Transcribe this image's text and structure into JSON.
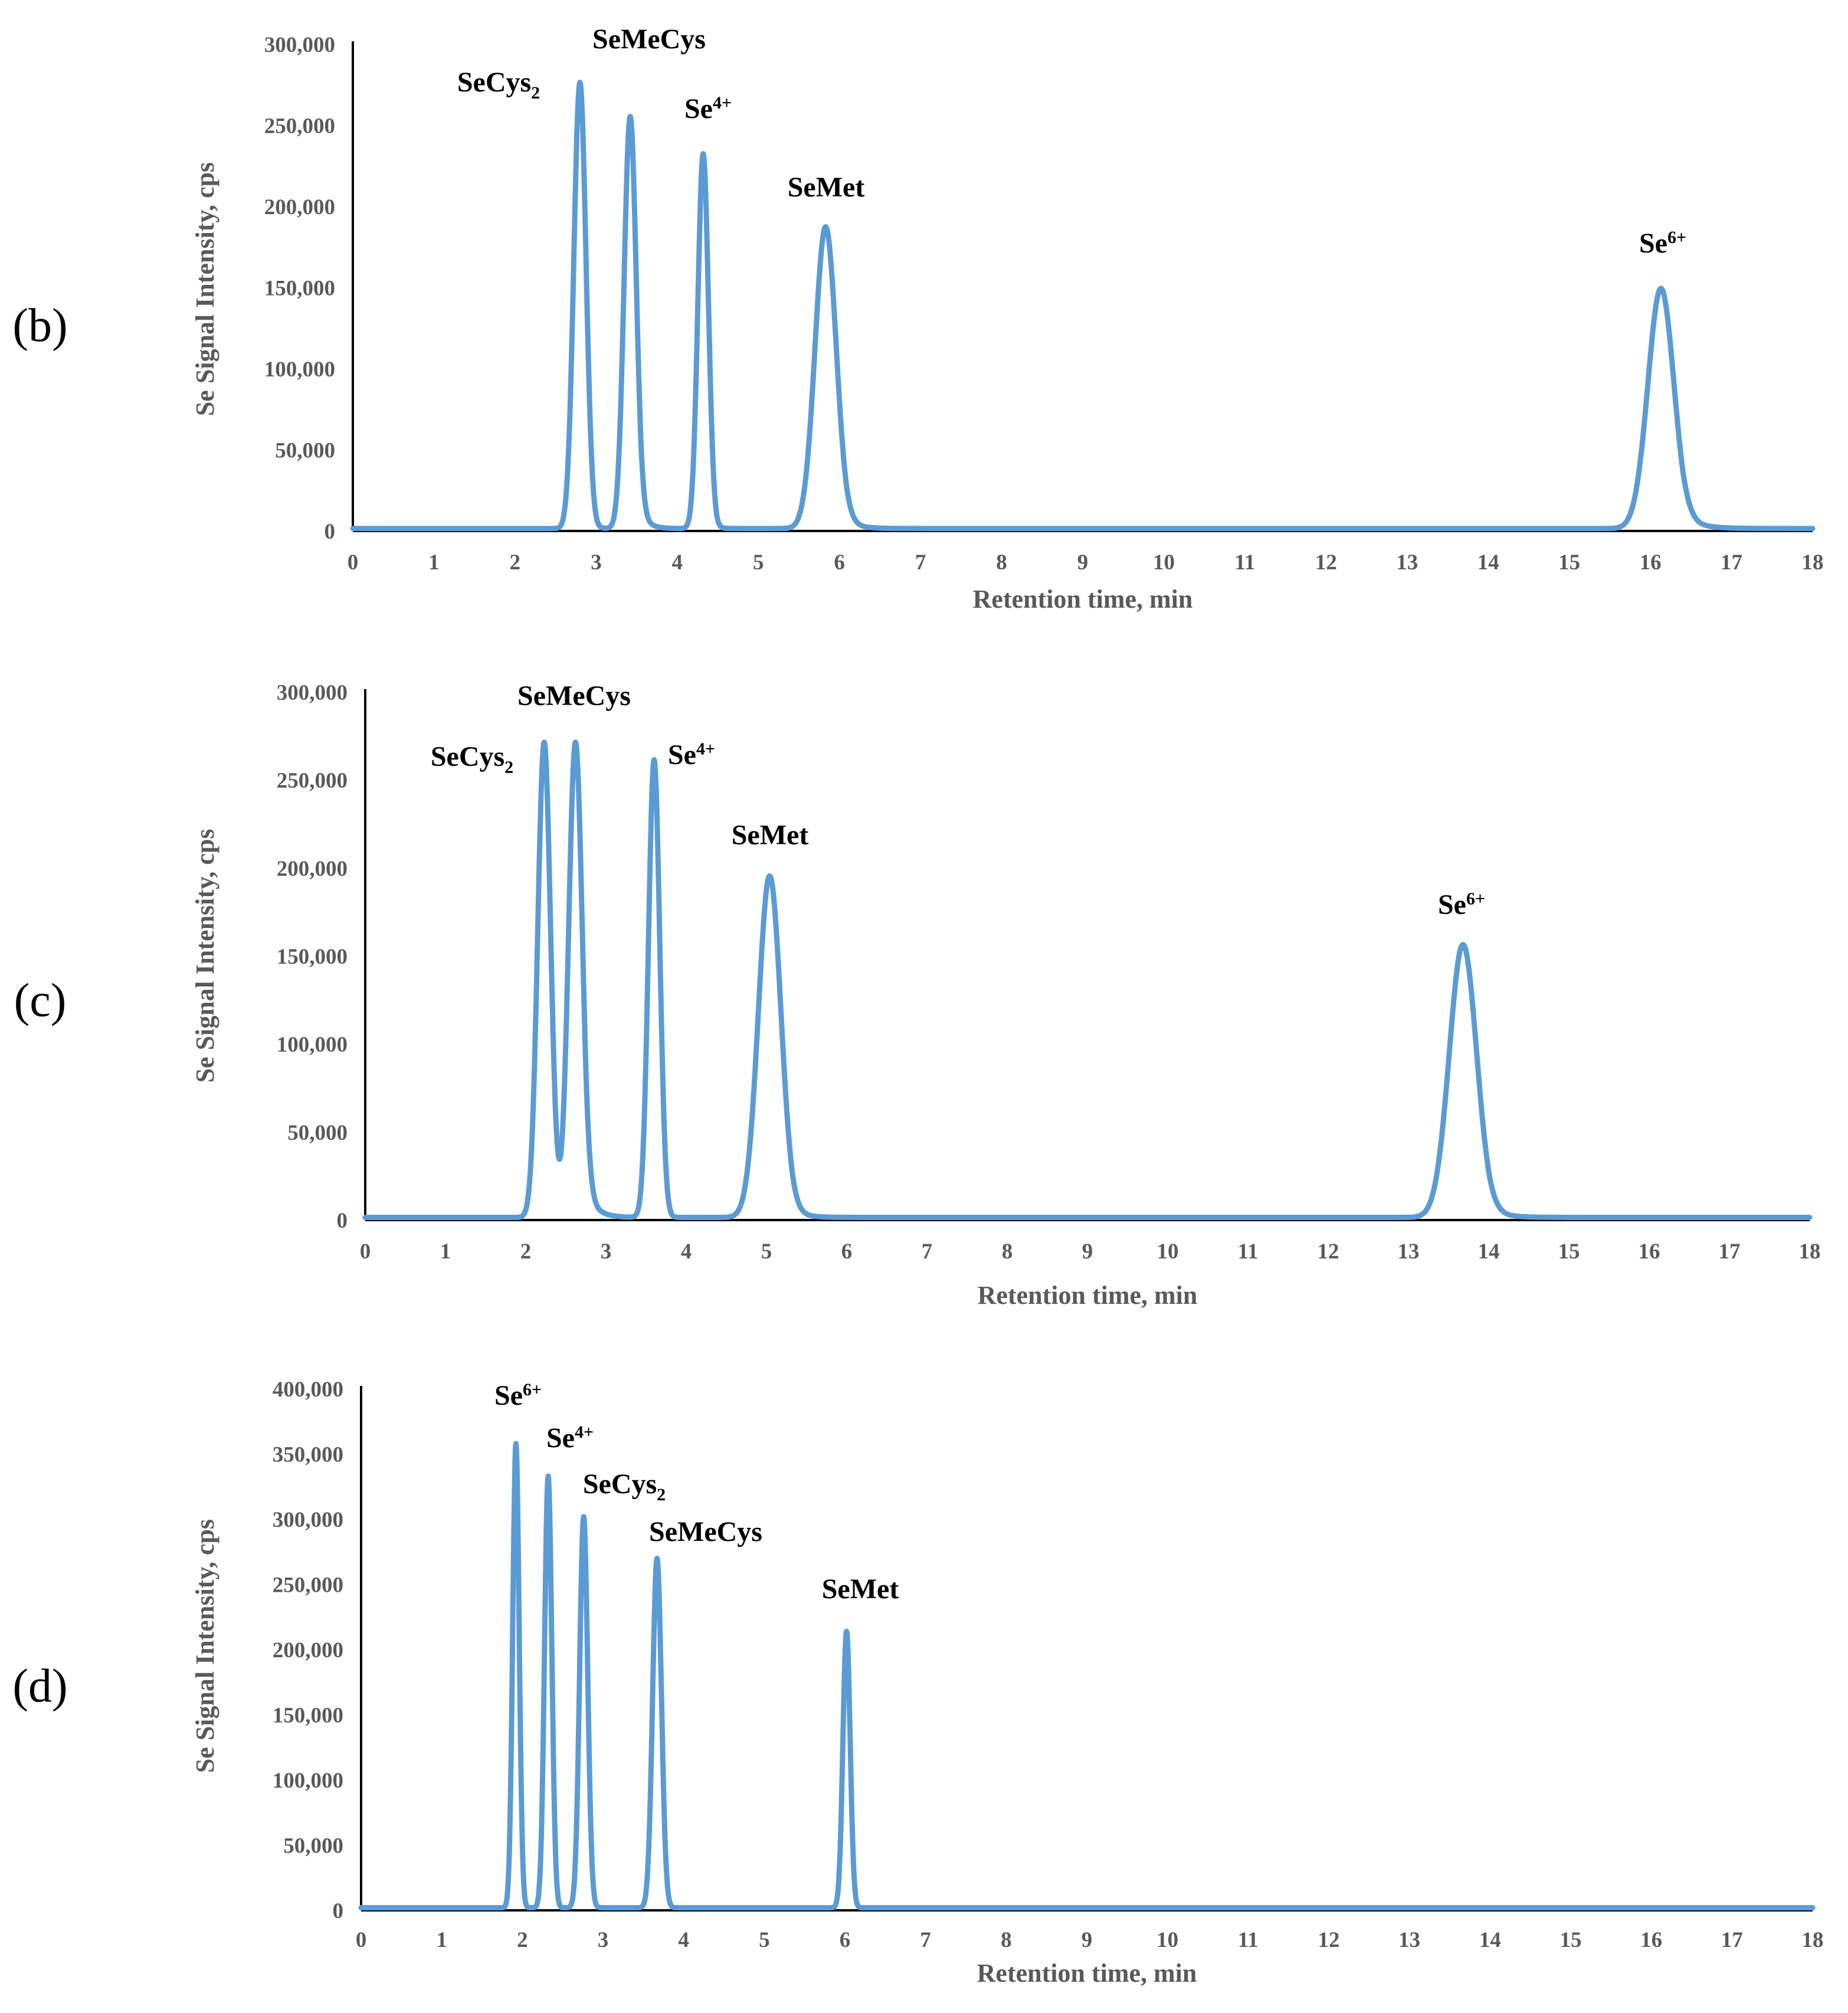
{
  "chart_data": [
    {
      "panel": "(b)",
      "type": "line",
      "xlabel": "Retention time, min",
      "ylabel": "Se Signal Intensity, cps",
      "xlim": [
        0,
        18
      ],
      "ylim": [
        0,
        300000
      ],
      "xticks": [
        0,
        1,
        2,
        3,
        4,
        5,
        6,
        7,
        8,
        9,
        10,
        11,
        12,
        13,
        14,
        15,
        16,
        17,
        18
      ],
      "yticks": [
        0,
        50000,
        100000,
        150000,
        200000,
        250000,
        300000
      ],
      "ytick_labels": [
        "0",
        "50,000",
        "100,000",
        "150,000",
        "200,000",
        "250,000",
        "300,000"
      ],
      "grid": false,
      "line_color": "#5b9bd5",
      "baseline": 1500,
      "peaks": [
        {
          "label": "SeCys",
          "sub": "2",
          "sup": "",
          "x": 2.8,
          "y": 275000,
          "width": 0.075,
          "tail": 0.05
        },
        {
          "label": "SeMeCys",
          "sub": "",
          "sup": "",
          "x": 3.42,
          "y": 254000,
          "width": 0.075,
          "tail": 0.09
        },
        {
          "label": "Se",
          "sub": "",
          "sup": "4+",
          "x": 4.32,
          "y": 231000,
          "width": 0.065,
          "tail": 0.05
        },
        {
          "label": "SeMet",
          "sub": "",
          "sup": "",
          "x": 5.83,
          "y": 186000,
          "width": 0.13,
          "tail": 0.14
        },
        {
          "label": "Se",
          "sub": "",
          "sup": "6+",
          "x": 16.13,
          "y": 148000,
          "width": 0.16,
          "tail": 0.2
        }
      ]
    },
    {
      "panel": "(c)",
      "type": "line",
      "xlabel": "Retention time, min",
      "ylabel": "Se Signal Intensity, cps",
      "xlim": [
        0,
        18
      ],
      "ylim": [
        0,
        300000
      ],
      "xticks": [
        0,
        1,
        2,
        3,
        4,
        5,
        6,
        7,
        8,
        9,
        10,
        11,
        12,
        13,
        14,
        15,
        16,
        17,
        18
      ],
      "yticks": [
        0,
        50000,
        100000,
        150000,
        200000,
        250000,
        300000
      ],
      "ytick_labels": [
        "0",
        "50,000",
        "100,000",
        "150,000",
        "200,000",
        "250,000",
        "300,000"
      ],
      "grid": false,
      "line_color": "#5b9bd5",
      "baseline": 1500,
      "peaks": [
        {
          "label": "SeCys",
          "sub": "2",
          "sup": "",
          "x": 2.23,
          "y": 270000,
          "width": 0.08,
          "tail": 0.05
        },
        {
          "label": "SeMeCys",
          "sub": "",
          "sup": "",
          "x": 2.62,
          "y": 270000,
          "width": 0.085,
          "tail": 0.12
        },
        {
          "label": "Se",
          "sub": "",
          "sup": "4+",
          "x": 3.6,
          "y": 260000,
          "width": 0.07,
          "tail": 0.04
        },
        {
          "label": "SeMet",
          "sub": "",
          "sup": "",
          "x": 5.04,
          "y": 194000,
          "width": 0.14,
          "tail": 0.14
        },
        {
          "label": "Se",
          "sub": "",
          "sup": "6+",
          "x": 13.68,
          "y": 155000,
          "width": 0.17,
          "tail": 0.18
        }
      ]
    },
    {
      "panel": "(d)",
      "type": "line",
      "xlabel": "Retention time, min",
      "ylabel": "Se Signal Intensity, cps",
      "xlim": [
        0,
        18
      ],
      "ylim": [
        0,
        400000
      ],
      "xticks": [
        0,
        1,
        2,
        3,
        4,
        5,
        6,
        7,
        8,
        9,
        10,
        11,
        12,
        13,
        14,
        15,
        16,
        17,
        18
      ],
      "yticks": [
        0,
        50000,
        100000,
        150000,
        200000,
        250000,
        300000,
        350000,
        400000
      ],
      "ytick_labels": [
        "0",
        "50,000",
        "100,000",
        "150,000",
        "200,000",
        "250,000",
        "300,000",
        "350,000",
        "400,000"
      ],
      "grid": false,
      "line_color": "#5b9bd5",
      "baseline": 2000,
      "peaks": [
        {
          "label": "Se",
          "sub": "",
          "sup": "6+",
          "x": 1.92,
          "y": 356000,
          "width": 0.04,
          "tail": 0.02
        },
        {
          "label": "Se",
          "sub": "",
          "sup": "4+",
          "x": 2.32,
          "y": 331000,
          "width": 0.045,
          "tail": 0.02
        },
        {
          "label": "SeCys",
          "sub": "2",
          "sup": "",
          "x": 2.76,
          "y": 300000,
          "width": 0.05,
          "tail": 0.03
        },
        {
          "label": "SeMeCys",
          "sub": "",
          "sup": "",
          "x": 3.67,
          "y": 268000,
          "width": 0.055,
          "tail": 0.03
        },
        {
          "label": "SeMet",
          "sub": "",
          "sup": "",
          "x": 6.02,
          "y": 212000,
          "width": 0.045,
          "tail": 0.02
        }
      ]
    }
  ]
}
